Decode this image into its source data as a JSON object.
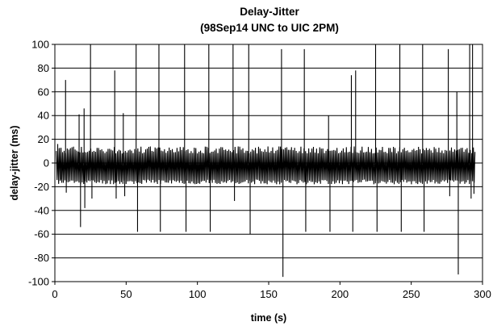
{
  "chart_data": {
    "type": "line",
    "title": "Delay-Jitter",
    "subtitle": "(98Sep14  UNC to UIC  2PM)",
    "xlabel": "time (s)",
    "ylabel": "delay-jitter (ms)",
    "xlim": [
      0,
      300
    ],
    "ylim": [
      -100,
      100
    ],
    "x_ticks": [
      0,
      50,
      100,
      150,
      200,
      250,
      300
    ],
    "y_ticks": [
      -100,
      -80,
      -60,
      -40,
      -20,
      0,
      20,
      40,
      60,
      80,
      100
    ],
    "x_tick_labels": [
      "0",
      "50",
      "100",
      "150",
      "200",
      "250",
      "300"
    ],
    "y_tick_labels": [
      "-100",
      "-80",
      "-60",
      "-40",
      "-20",
      "0",
      "20",
      "40",
      "60",
      "80",
      "100"
    ],
    "grid": "horizontal",
    "legend": "none",
    "baseline_band": {
      "x_start": 1,
      "x_end": 295,
      "upper": 14,
      "lower": -18
    },
    "spikes": [
      {
        "x": 2,
        "y": 16
      },
      {
        "x": 4,
        "y": -14
      },
      {
        "x": 7.5,
        "y": 70
      },
      {
        "x": 8,
        "y": -25
      },
      {
        "x": 17,
        "y": 41
      },
      {
        "x": 18,
        "y": -54
      },
      {
        "x": 20.5,
        "y": 46
      },
      {
        "x": 21,
        "y": -38
      },
      {
        "x": 25,
        "y": 100
      },
      {
        "x": 26,
        "y": -30
      },
      {
        "x": 42,
        "y": 78
      },
      {
        "x": 43,
        "y": -30
      },
      {
        "x": 48,
        "y": 42
      },
      {
        "x": 49,
        "y": -28
      },
      {
        "x": 57,
        "y": 100
      },
      {
        "x": 58,
        "y": -58
      },
      {
        "x": 73,
        "y": 100
      },
      {
        "x": 74,
        "y": -58
      },
      {
        "x": 91,
        "y": 100
      },
      {
        "x": 92,
        "y": -58
      },
      {
        "x": 108,
        "y": 100
      },
      {
        "x": 109,
        "y": -58
      },
      {
        "x": 125,
        "y": 100
      },
      {
        "x": 126,
        "y": -32
      },
      {
        "x": 136,
        "y": 100
      },
      {
        "x": 137,
        "y": -60
      },
      {
        "x": 159,
        "y": 96
      },
      {
        "x": 160,
        "y": -96
      },
      {
        "x": 175,
        "y": 96
      },
      {
        "x": 176,
        "y": -58
      },
      {
        "x": 192,
        "y": 40
      },
      {
        "x": 193,
        "y": -58
      },
      {
        "x": 208,
        "y": 74
      },
      {
        "x": 209,
        "y": -58
      },
      {
        "x": 211,
        "y": 78
      },
      {
        "x": 225,
        "y": 100
      },
      {
        "x": 226,
        "y": -58
      },
      {
        "x": 242,
        "y": 100
      },
      {
        "x": 243,
        "y": -58
      },
      {
        "x": 258,
        "y": 100
      },
      {
        "x": 259,
        "y": -58
      },
      {
        "x": 276,
        "y": 96
      },
      {
        "x": 277,
        "y": -28
      },
      {
        "x": 282,
        "y": 60
      },
      {
        "x": 283,
        "y": -94
      },
      {
        "x": 291,
        "y": 100
      },
      {
        "x": 292,
        "y": -30
      },
      {
        "x": 293,
        "y": 100
      },
      {
        "x": 294,
        "y": -26
      }
    ]
  }
}
